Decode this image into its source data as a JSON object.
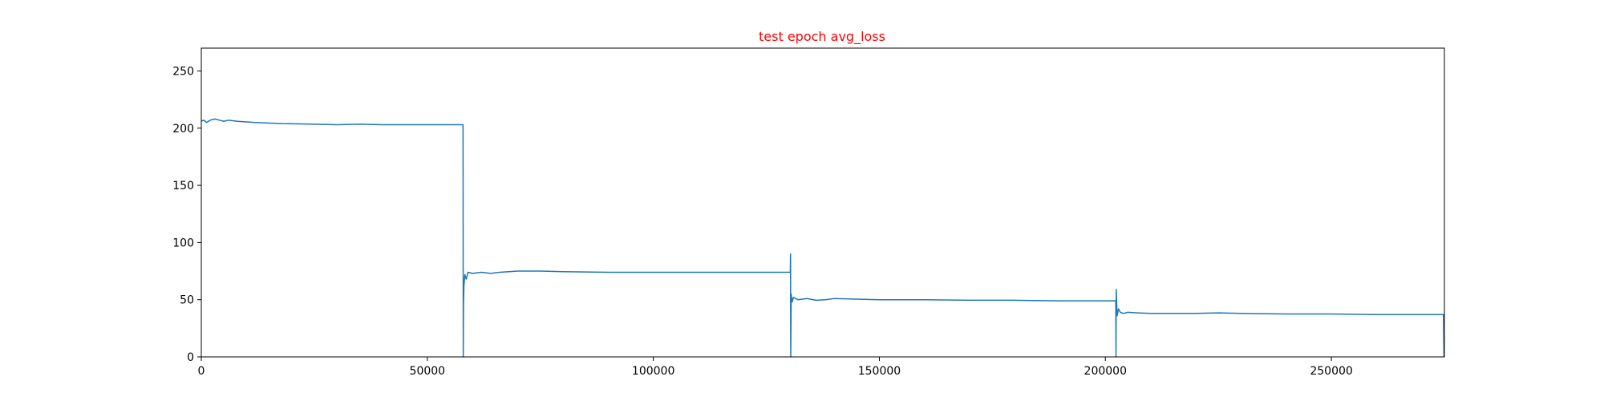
{
  "chart_data": {
    "type": "line",
    "title": "test epoch avg_loss",
    "title_color": "#ff0000",
    "line_color": "#1f77b4",
    "xlabel": "",
    "ylabel": "",
    "xlim": [
      0,
      275000
    ],
    "ylim": [
      0,
      270
    ],
    "grid": false,
    "x_ticks": [
      0,
      50000,
      100000,
      150000,
      200000,
      250000
    ],
    "x_tick_labels": [
      "0",
      "50000",
      "100000",
      "150000",
      "200000",
      "250000"
    ],
    "y_ticks": [
      0,
      50,
      100,
      150,
      200,
      250
    ],
    "y_tick_labels": [
      "0",
      "50",
      "100",
      "150",
      "200",
      "250"
    ],
    "series": [
      {
        "x": [
          0,
          500,
          1200,
          2000,
          3000,
          4000,
          5000,
          6000,
          8000,
          12000,
          18000,
          25000,
          30000,
          35000,
          40000,
          45000,
          50000,
          55000,
          57900,
          57950,
          58000,
          58100,
          58300,
          58600,
          59000,
          60000,
          62000,
          64000,
          66000,
          70000,
          75000,
          80000,
          90000,
          100000,
          110000,
          120000,
          130300,
          130350,
          130400,
          130500,
          130700,
          131000,
          132000,
          134000,
          136000,
          138000,
          140000,
          145000,
          150000,
          160000,
          170000,
          180000,
          190000,
          202300,
          202350,
          202400,
          202600,
          202900,
          203300,
          204000,
          205000,
          207000,
          210000,
          215000,
          220000,
          225000,
          230000,
          240000,
          250000,
          260000,
          270000,
          274800,
          274900,
          275000
        ],
        "y": [
          206,
          207,
          205,
          207,
          208,
          207,
          206,
          207,
          206,
          205,
          204,
          203.5,
          203,
          203.5,
          203,
          203,
          203,
          203,
          203,
          0,
          46,
          62,
          72,
          68,
          74,
          73,
          74,
          73,
          74,
          75,
          75,
          74.5,
          74,
          74,
          74,
          74,
          74,
          90,
          0,
          55,
          48,
          52,
          50,
          51,
          49.5,
          50,
          51,
          50.5,
          50,
          50,
          49.5,
          49.5,
          49,
          49,
          0,
          59,
          36,
          42,
          39,
          38,
          39,
          38.5,
          38,
          38,
          38,
          38.5,
          38,
          37.5,
          37.5,
          37,
          37,
          37,
          1,
          0
        ]
      }
    ]
  }
}
